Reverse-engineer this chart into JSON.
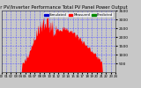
{
  "title": "Solar PV/Inverter Performance Total PV Panel Power Output",
  "title_fontsize": 3.8,
  "bar_color": "#ff0000",
  "bg_color": "#c8c8c8",
  "plot_bg_color": "#c8c8c8",
  "fig_bg_color": "#c8c8c8",
  "grid_color": "#5555ff",
  "legend_colors": [
    "#0000cc",
    "#ff0000",
    "#008800"
  ],
  "legend_labels": [
    "Simulated",
    "Measured",
    "Predicted"
  ],
  "ylim": [
    0,
    3500
  ],
  "yticks": [
    500,
    1000,
    1500,
    2000,
    2500,
    3000,
    3500
  ],
  "ylabel_fontsize": 3.2,
  "xlabel_fontsize": 2.8,
  "num_points": 288
}
